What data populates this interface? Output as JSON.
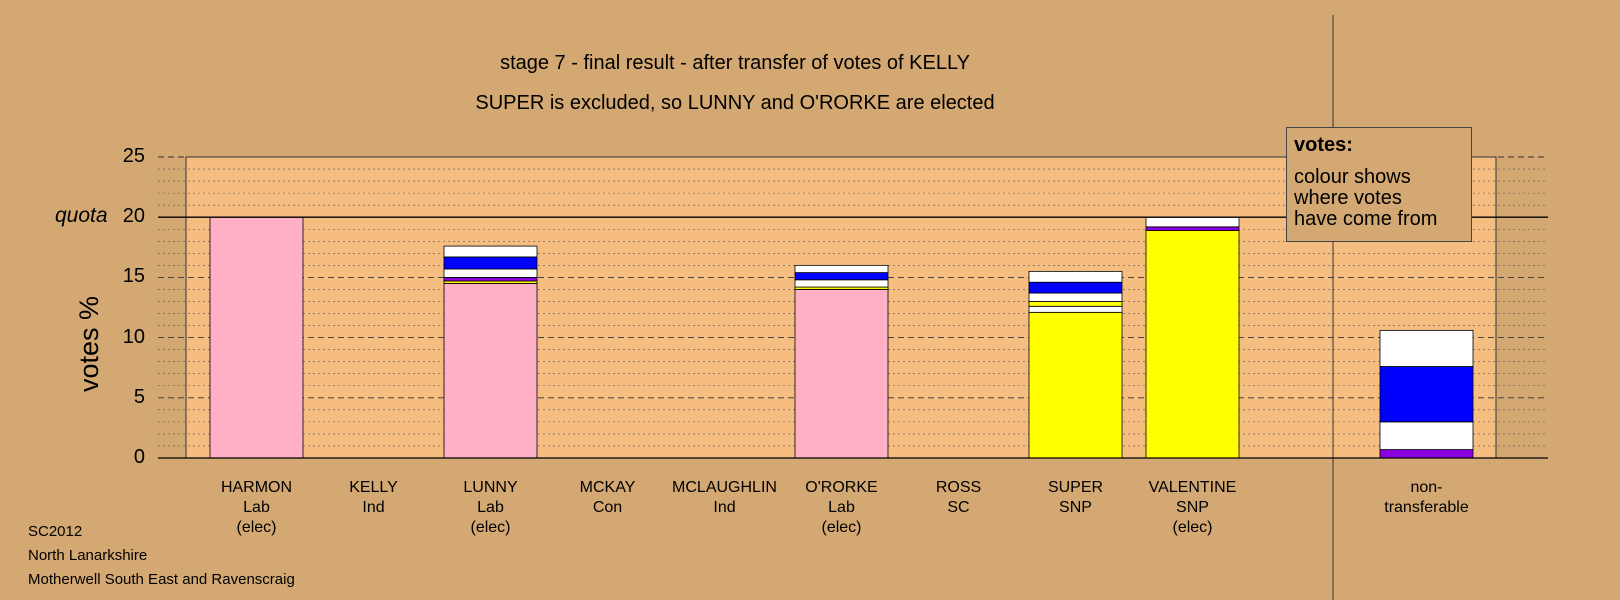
{
  "header": {
    "title": "stage 7 - final result - after transfer of votes of KELLY",
    "subtitle": "SUPER is excluded, so LUNNY and O'RORKE are elected"
  },
  "legend": {
    "title": "votes:",
    "body": "colour shows where votes have come from",
    "lines": [
      "colour shows",
      "where votes",
      "have come from"
    ]
  },
  "footer": {
    "line1": "SC2012",
    "line2": "North Lanarkshire",
    "line3": "Motherwell South East and Ravenscraig"
  },
  "chart_data": {
    "type": "bar",
    "stacked": true,
    "title": "stage 7 - final result - after transfer of votes of KELLY",
    "subtitle": "SUPER is excluded, so LUNNY and O'RORKE are elected",
    "ylabel": "votes %",
    "ylim": [
      0,
      25
    ],
    "yticks": [
      0,
      5,
      10,
      15,
      20,
      25
    ],
    "quota": 20,
    "quota_label": "quota",
    "grid": "dashed major, dotted minor",
    "legend_placement": "top-right",
    "categories": [
      {
        "name": "HARMON",
        "party": "Lab",
        "status": "(elec)"
      },
      {
        "name": "KELLY",
        "party": "Ind",
        "status": ""
      },
      {
        "name": "LUNNY",
        "party": "Lab",
        "status": "(elec)"
      },
      {
        "name": "MCKAY",
        "party": "Con",
        "status": ""
      },
      {
        "name": "MCLAUGHLIN",
        "party": "Ind",
        "status": ""
      },
      {
        "name": "O'RORKE",
        "party": "Lab",
        "status": "(elec)"
      },
      {
        "name": "ROSS",
        "party": "SC",
        "status": ""
      },
      {
        "name": "SUPER",
        "party": "SNP",
        "status": ""
      },
      {
        "name": "VALENTINE",
        "party": "SNP",
        "status": "(elec)"
      }
    ],
    "nontransferable_label": [
      "non-",
      "transferable"
    ],
    "colors": {
      "Lab": "#ffb0c4",
      "SNP": "#ffff00",
      "Con": "#0000ff",
      "Ind": "#ffffff",
      "SC": "#8a00e0",
      "background": "#d4a873",
      "plot_area": "#f5bd7f"
    },
    "stacks": [
      [
        {
          "party": "Lab",
          "value": 20.0
        }
      ],
      [],
      [
        {
          "party": "Lab",
          "value": 14.5
        },
        {
          "party": "SNP",
          "value": 0.2
        },
        {
          "party": "SC",
          "value": 0.3
        },
        {
          "party": "Ind",
          "value": 0.7
        },
        {
          "party": "Con",
          "value": 1.0
        },
        {
          "party": "Ind",
          "value": 0.9
        }
      ],
      [],
      [],
      [
        {
          "party": "Lab",
          "value": 14.0
        },
        {
          "party": "SNP",
          "value": 0.2
        },
        {
          "party": "Ind",
          "value": 0.6
        },
        {
          "party": "Con",
          "value": 0.6
        },
        {
          "party": "Ind",
          "value": 0.6
        }
      ],
      [],
      [
        {
          "party": "SNP",
          "value": 12.1
        },
        {
          "party": "Ind",
          "value": 0.5
        },
        {
          "party": "SNP",
          "value": 0.4
        },
        {
          "party": "Ind",
          "value": 0.7
        },
        {
          "party": "Con",
          "value": 0.9
        },
        {
          "party": "Ind",
          "value": 0.9
        }
      ],
      [
        {
          "party": "SNP",
          "value": 18.9
        },
        {
          "party": "SC",
          "value": 0.3
        },
        {
          "party": "Ind",
          "value": 0.8
        }
      ]
    ],
    "nontransferable": [
      {
        "party": "SC",
        "value": 0.7
      },
      {
        "party": "Ind",
        "value": 2.3
      },
      {
        "party": "Con",
        "value": 4.6
      },
      {
        "party": "Ind",
        "value": 3.0
      }
    ]
  }
}
